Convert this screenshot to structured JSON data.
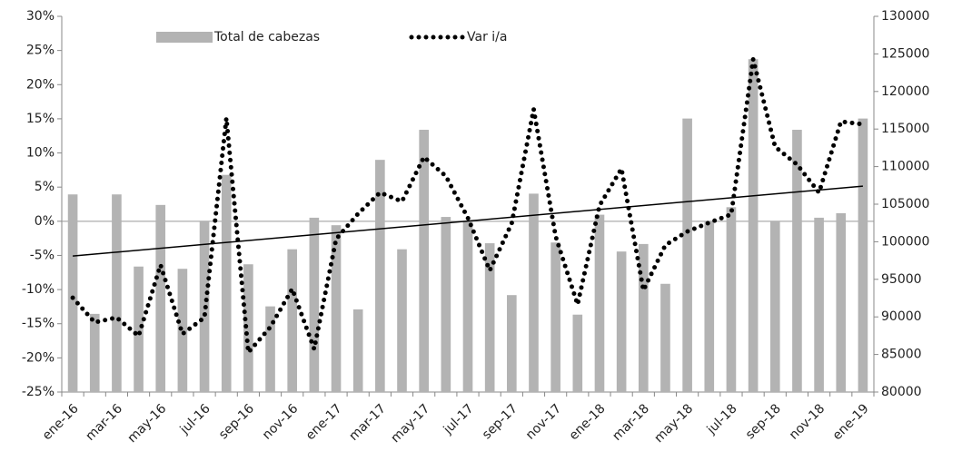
{
  "chart_data": {
    "type": "bar_line",
    "categories": [
      "ene-16",
      null,
      "mar-16",
      null,
      "may-16",
      null,
      "jul-16",
      null,
      "sep-16",
      null,
      "nov-16",
      null,
      "ene-17",
      null,
      "mar-17",
      null,
      "may-17",
      null,
      "jul-17",
      null,
      "sep-17",
      null,
      "nov-17",
      null,
      "ene-18",
      null,
      "mar-18",
      null,
      "may-18",
      null,
      "jul-18",
      null,
      "sep-18",
      null,
      "nov-18",
      null,
      "ene-19"
    ],
    "series": [
      {
        "name": "Total de cabezas",
        "type": "bar",
        "axis": "y2",
        "color": "#b3b3b3",
        "values": [
          106300,
          90400,
          106300,
          96700,
          104900,
          96400,
          102800,
          108900,
          97000,
          91400,
          99000,
          103200,
          102200,
          91000,
          110900,
          99000,
          114900,
          103300,
          102800,
          99800,
          92900,
          106400,
          99900,
          90300,
          103600,
          98700,
          99700,
          94400,
          116400,
          102800,
          104600,
          124300,
          102800,
          114900,
          103200,
          103800,
          116400
        ]
      },
      {
        "name": "Var i/a",
        "type": "line",
        "axis": "y",
        "color": "#000000",
        "values": [
          -11.2,
          -14.8,
          -14.1,
          -16.8,
          -6.4,
          -16.5,
          -14.1,
          15.1,
          -19.2,
          -15.5,
          -9.9,
          -18.7,
          -2.6,
          1.1,
          4.2,
          2.9,
          9.4,
          6.6,
          0.5,
          -7.2,
          -0.3,
          16.4,
          -2.2,
          -12.2,
          2.3,
          7.7,
          -10.1,
          -3.5,
          -1.5,
          -0.2,
          1.0,
          23.7,
          10.9,
          8.3,
          4.2,
          14.6,
          14.2
        ]
      }
    ],
    "trendline": {
      "axis": "y2",
      "color": "#000000",
      "values": [
        98100,
        107400
      ]
    },
    "ylim": [
      -25,
      30
    ],
    "yticks": [
      {
        "value": -25,
        "label": "-25%"
      },
      {
        "value": -20,
        "label": "-20%"
      },
      {
        "value": -15,
        "label": "-15%"
      },
      {
        "value": -10,
        "label": "-10%"
      },
      {
        "value": -5,
        "label": "-5%"
      },
      {
        "value": 0,
        "label": "0%"
      },
      {
        "value": 5,
        "label": "5%"
      },
      {
        "value": 10,
        "label": "10%"
      },
      {
        "value": 15,
        "label": "15%"
      },
      {
        "value": 20,
        "label": "20%"
      },
      {
        "value": 25,
        "label": "25%"
      },
      {
        "value": 30,
        "label": "30%"
      }
    ],
    "y2lim": [
      80000,
      130000
    ],
    "y2ticks": [
      80000,
      85000,
      90000,
      95000,
      100000,
      105000,
      110000,
      115000,
      120000,
      125000,
      130000
    ],
    "grid": false,
    "legend": "top"
  }
}
